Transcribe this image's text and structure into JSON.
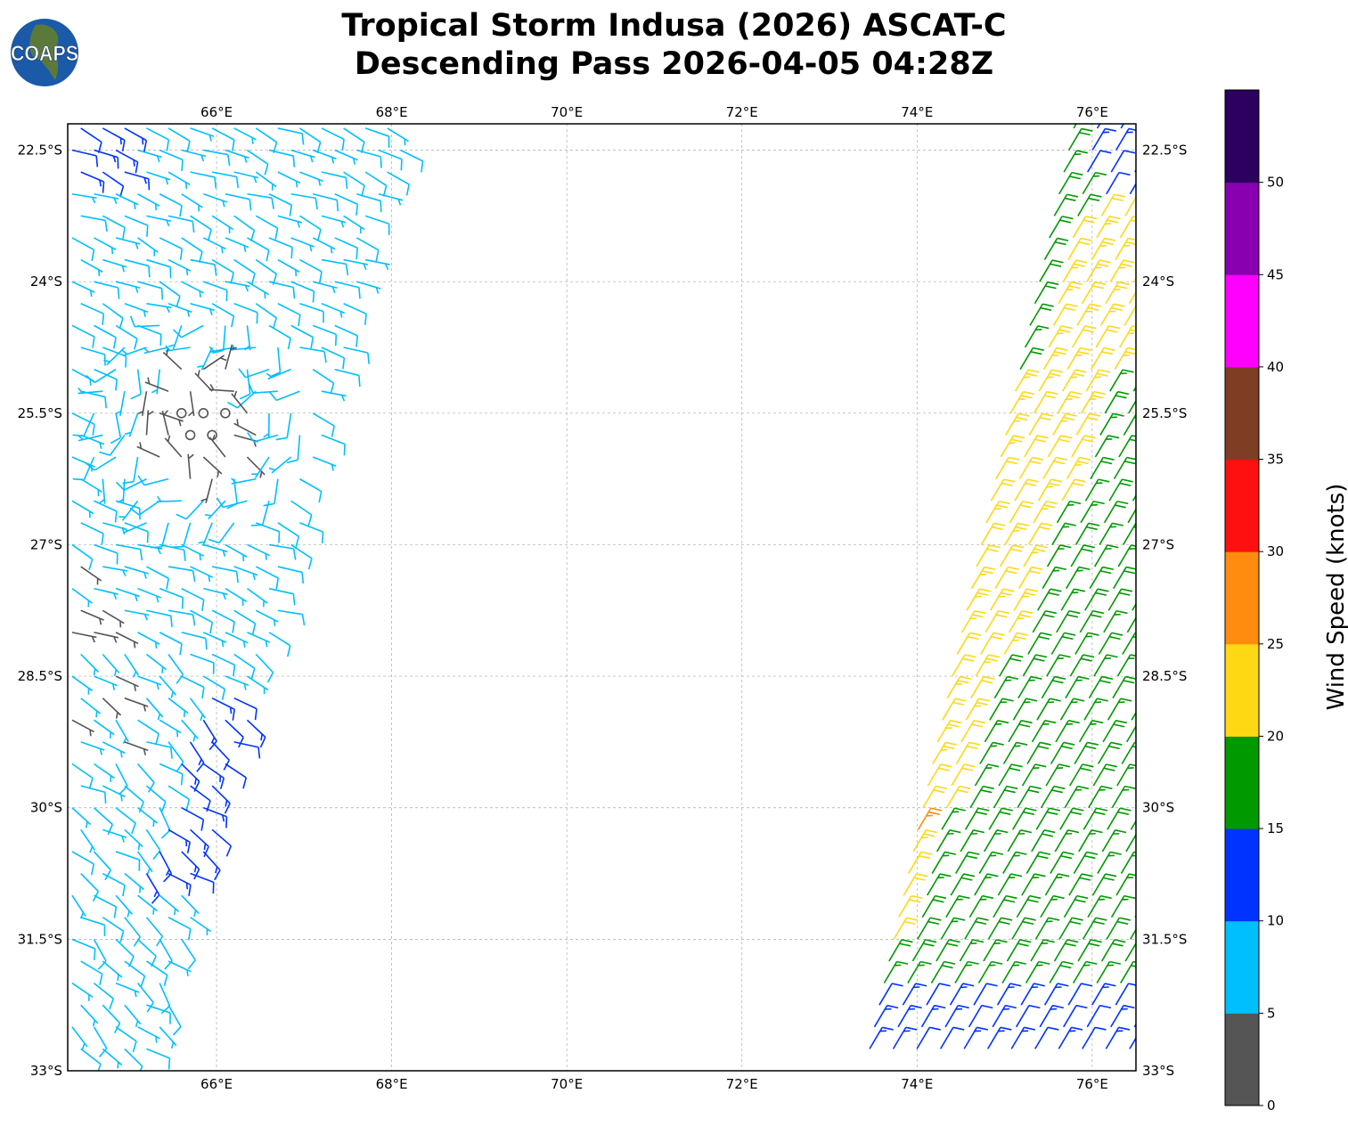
{
  "title": {
    "line1": "Tropical Storm Indusa (2026) ASCAT-C",
    "line2": "Descending Pass 2026-04-05 04:28Z"
  },
  "logo": {
    "text": "COAPS"
  },
  "chart_data": {
    "type": "wind-barb-map",
    "xlim": [
      64.3,
      76.5
    ],
    "ylim_south": [
      22.2,
      33.0
    ],
    "x_ticks": [
      {
        "value": 66,
        "label": "66°E"
      },
      {
        "value": 68,
        "label": "68°E"
      },
      {
        "value": 70,
        "label": "70°E"
      },
      {
        "value": 72,
        "label": "72°E"
      },
      {
        "value": 74,
        "label": "74°E"
      },
      {
        "value": 76,
        "label": "76°E"
      }
    ],
    "y_ticks": [
      {
        "value": 22.5,
        "label": "22.5°S"
      },
      {
        "value": 24,
        "label": "24°S"
      },
      {
        "value": 25.5,
        "label": "25.5°S"
      },
      {
        "value": 27,
        "label": "27°S"
      },
      {
        "value": 28.5,
        "label": "28.5°S"
      },
      {
        "value": 30,
        "label": "30°S"
      },
      {
        "value": 31.5,
        "label": "31.5°S"
      },
      {
        "value": 33,
        "label": "33°S"
      }
    ],
    "grid": true,
    "colorbar": {
      "label": "Wind Speed (knots)",
      "range": [
        0,
        55
      ],
      "ticks": [
        "0",
        "5",
        "10",
        "15",
        "20",
        "25",
        "30",
        "35",
        "40",
        "45",
        "50"
      ],
      "colors": [
        "#555555",
        "#00bfff",
        "#0033ff",
        "#009900",
        "#ffd814",
        "#ff8c0f",
        "#ff1010",
        "#7f3d26",
        "#ff00ff",
        "#8800b0",
        "#2b005e"
      ]
    },
    "swaths": [
      {
        "name": "west swath",
        "dominant_speed_kt": "5-10",
        "center_lon": 65.8,
        "center_lat_south": 25.6,
        "calm_center": true
      },
      {
        "name": "east swath",
        "dominant_speed_kt": "15-25",
        "max_speed_kt": "25-30"
      }
    ]
  }
}
